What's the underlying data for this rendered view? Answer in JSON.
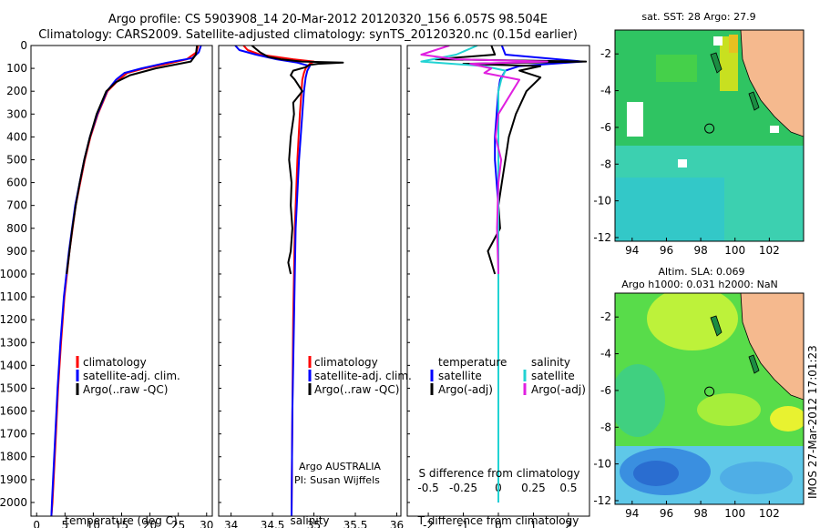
{
  "header": {
    "line1": "Argo profile: CS 5903908_14 20-Mar-2012 20120320_156 6.057S 98.504E",
    "line2": "Climatology: CARS2009. Satellite-adjusted climatology: synTS_20120320.nc (0.15d earlier)"
  },
  "colors": {
    "climatology": "#ff0000",
    "satellite": "#0000ff",
    "argo": "#000000",
    "sal_sat": "#22d3d3",
    "sal_argo": "#e020e0",
    "land": "#f5b98e"
  },
  "chart_data": [
    {
      "type": "line",
      "id": "temperature",
      "xlabel": "temperature (deg C)",
      "ylim": [
        0,
        2060
      ],
      "xlim": [
        -1,
        31
      ],
      "yticks": [
        0,
        100,
        200,
        300,
        400,
        500,
        600,
        700,
        800,
        900,
        1000,
        1100,
        1200,
        1300,
        1400,
        1500,
        1600,
        1700,
        1800,
        1900,
        2000
      ],
      "xticks": [
        0,
        5,
        10,
        15,
        20,
        25,
        30
      ],
      "legend": [
        "climatology",
        "satellite-adj. clim.",
        "Argo(..raw -QC)"
      ],
      "series": [
        {
          "name": "climatology",
          "color": "#ff0000",
          "depth": [
            0,
            30,
            60,
            80,
            100,
            120,
            150,
            200,
            300,
            400,
            500,
            700,
            900,
            1100,
            1300,
            1500,
            1700,
            2000,
            2060
          ],
          "values": [
            28.5,
            28.2,
            26.5,
            23,
            19,
            16,
            14.5,
            12.5,
            10.8,
            9.5,
            8.5,
            6.9,
            5.8,
            4.9,
            4.3,
            3.8,
            3.4,
            2.8,
            2.6
          ]
        },
        {
          "name": "satellite-adj. clim.",
          "color": "#0000ff",
          "depth": [
            0,
            30,
            55,
            75,
            100,
            120,
            150,
            200,
            300,
            400,
            500,
            700,
            900,
            1100,
            1300,
            1500,
            1700,
            2000,
            2060
          ],
          "values": [
            29,
            28.6,
            27.5,
            23,
            18.5,
            15.5,
            14,
            12.4,
            10.7,
            9.4,
            8.4,
            6.8,
            5.7,
            4.8,
            4.2,
            3.7,
            3.3,
            2.7,
            2.6
          ]
        },
        {
          "name": "Argo(..raw -QC)",
          "color": "#000000",
          "depth": [
            0,
            40,
            70,
            100,
            130,
            160,
            200,
            300,
            400,
            500,
            600,
            700,
            800,
            900,
            1000
          ],
          "values": [
            28.3,
            28.1,
            27.2,
            21,
            16.5,
            14,
            12.3,
            10.6,
            9.4,
            8.4,
            7.6,
            6.9,
            6.3,
            5.8,
            5.3
          ]
        }
      ]
    },
    {
      "type": "line",
      "id": "salinity",
      "xlabel": "salinity",
      "xlim": [
        33.85,
        36.05
      ],
      "ylim": [
        0,
        2060
      ],
      "xticks": [
        34,
        34.5,
        35,
        35.5,
        36
      ],
      "tick_labels": [
        "34",
        "34.5",
        "35",
        "35.5",
        "36"
      ],
      "legend": [
        "climatology",
        "satellite-adj. clim.",
        "Argo(..raw -QC)"
      ],
      "series": [
        {
          "name": "climatology",
          "color": "#ff0000",
          "depth": [
            0,
            20,
            40,
            60,
            70,
            80,
            100,
            120,
            150,
            200,
            300,
            500,
            800,
            1200,
            1600,
            2060
          ],
          "values": [
            34.15,
            34.2,
            34.35,
            34.75,
            35.0,
            34.95,
            34.9,
            34.88,
            34.86,
            34.85,
            34.83,
            34.8,
            34.77,
            34.75,
            34.74,
            34.73
          ]
        },
        {
          "name": "satellite-adj. clim.",
          "color": "#0000ff",
          "depth": [
            0,
            20,
            40,
            60,
            75,
            90,
            110,
            140,
            200,
            300,
            500,
            800,
            1200,
            1600,
            2060
          ],
          "values": [
            34.05,
            34.1,
            34.3,
            34.55,
            34.8,
            34.95,
            34.92,
            34.9,
            34.88,
            34.86,
            34.82,
            34.78,
            34.76,
            34.74,
            34.73
          ]
        },
        {
          "name": "Argo(..raw -QC)",
          "color": "#000000",
          "depth": [
            0,
            30,
            50,
            60,
            70,
            75,
            80,
            85,
            95,
            110,
            130,
            150,
            200,
            250,
            300,
            400,
            500,
            600,
            700,
            800,
            900,
            950,
            1000
          ],
          "values": [
            34.25,
            34.35,
            34.45,
            34.6,
            34.85,
            35.35,
            35.05,
            34.95,
            34.9,
            34.75,
            34.72,
            34.77,
            34.86,
            34.75,
            34.76,
            34.72,
            34.7,
            34.73,
            34.72,
            34.74,
            34.72,
            34.69,
            34.72
          ]
        }
      ],
      "annotation": {
        "line1": "Argo AUSTRALIA",
        "line2": "PI: Susan Wijffels"
      }
    },
    {
      "type": "line",
      "id": "differences",
      "xlabel": "T difference from climatology",
      "top_axis_label": "S difference from climatology",
      "xlim": [
        -2.6,
        2.6
      ],
      "ylim": [
        0,
        2060
      ],
      "xticks": [
        -2,
        -1,
        0,
        1,
        2
      ],
      "s_ticks": [
        "-0.5",
        "-0.25",
        "0",
        "0.25",
        "0.5"
      ],
      "legend_titles": [
        "temperature",
        "salinity"
      ],
      "legend_labels": [
        "satellite",
        "Argo(-adj)",
        "satellite",
        "Argo(-adj)"
      ],
      "series": [
        {
          "name": "temperature satellite",
          "color": "#0000ff",
          "depth": [
            0,
            40,
            70,
            90,
            110,
            150,
            200,
            300,
            400,
            500,
            600,
            700,
            800,
            900,
            1000,
            1200,
            1500,
            2000
          ],
          "values": [
            0.1,
            0.2,
            2.4,
            0.6,
            0.2,
            0.05,
            0,
            -0.05,
            -0.1,
            -0.1,
            -0.05,
            0,
            0,
            0,
            0,
            0,
            0,
            0
          ]
        },
        {
          "name": "temperature Argo(-adj)",
          "color": "#000000",
          "depth": [
            0,
            40,
            60,
            70,
            80,
            90,
            110,
            140,
            200,
            300,
            400,
            500,
            600,
            700,
            800,
            900,
            1000
          ],
          "values": [
            -0.2,
            -0.1,
            -1.8,
            2.5,
            -1,
            1.2,
            0.6,
            1.2,
            0.8,
            0.5,
            0.3,
            0.2,
            0.1,
            0,
            0.05,
            -0.3,
            -0.1
          ]
        },
        {
          "name": "salinity satellite",
          "color": "#22d3d3",
          "depth": [
            0,
            40,
            70,
            90,
            110,
            150,
            200,
            300,
            500,
            700,
            900,
            1200,
            1500,
            2000
          ],
          "values": [
            -0.15,
            -0.3,
            -0.55,
            -0.1,
            0.05,
            0.02,
            0,
            0,
            0,
            0,
            0,
            0,
            0,
            0
          ]
        },
        {
          "name": "salinity Argo(-adj)",
          "color": "#e020e0",
          "depth": [
            0,
            40,
            60,
            70,
            80,
            100,
            120,
            150,
            200,
            300,
            400,
            500,
            600,
            800,
            1000
          ],
          "values": [
            -0.35,
            -0.55,
            -0.3,
            0.35,
            -0.2,
            -0.05,
            -0.1,
            0.15,
            0.1,
            0,
            -0.02,
            0.02,
            0,
            -0.01,
            0
          ]
        }
      ]
    }
  ],
  "maps": {
    "sst": {
      "title": "sat. SST: 28 Argo: 27.9",
      "xticks": [
        "94",
        "96",
        "98",
        "100",
        "102"
      ],
      "yticks": [
        "-2",
        "-4",
        "-6",
        "-8",
        "-10",
        "-12"
      ]
    },
    "sla": {
      "title1": "Altim. SLA: 0.069",
      "title2": "Argo h1000: 0.031 h2000: NaN",
      "xticks": [
        "94",
        "96",
        "98",
        "100",
        "102"
      ],
      "yticks": [
        "-2",
        "-4",
        "-6",
        "-8",
        "-10",
        "-12"
      ]
    },
    "argo_position": {
      "lon": 98.504,
      "lat": -6.057
    },
    "lon_range": [
      93,
      104
    ],
    "lat_range": [
      -12.2,
      -0.7
    ]
  },
  "credit": "IMOS 27-Mar-2012 17:01:23"
}
